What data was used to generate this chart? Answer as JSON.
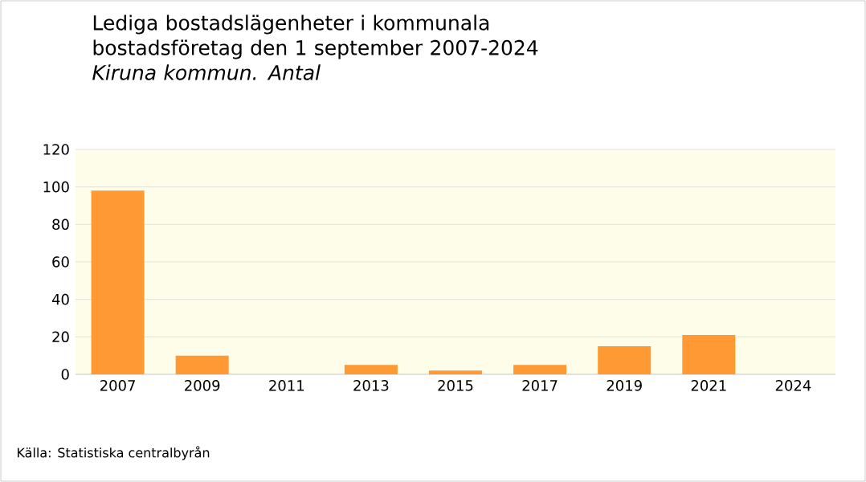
{
  "chart_data": {
    "type": "bar",
    "title": "Lediga bostadslägenheter i kommunala bostadsföretag den 1 september 2007-2024",
    "subtitle": "Kiruna kommun. Antal",
    "categories": [
      "2007",
      "2009",
      "2011",
      "2013",
      "2015",
      "2017",
      "2019",
      "2021",
      "2024"
    ],
    "values": [
      98,
      10,
      0,
      5,
      2,
      5,
      15,
      21,
      0
    ],
    "color": "#ff9933",
    "ylim": [
      0,
      120
    ],
    "yticks": [
      0,
      20,
      40,
      60,
      80,
      100,
      120
    ],
    "grid": "y",
    "annotations": [
      "Källa: Statistiska centralbyrån"
    ]
  }
}
